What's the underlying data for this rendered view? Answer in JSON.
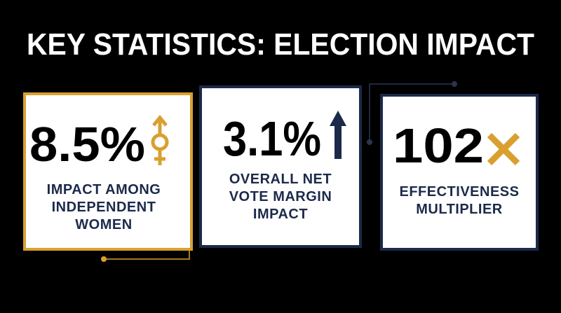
{
  "title": "KEY STATISTICS: ELECTION IMPACT",
  "cards": [
    {
      "value": "8.5%",
      "label_lines": [
        "IMPACT AMONG",
        "INDEPENDENT",
        "WOMEN"
      ]
    },
    {
      "value": "3.1%",
      "label_lines": [
        "OVERALL NET",
        "VOTE MARGIN",
        "IMPACT"
      ]
    },
    {
      "value": "102",
      "label_lines": [
        "EFFECTIVENESS",
        "MULTIPLIER"
      ]
    }
  ]
}
